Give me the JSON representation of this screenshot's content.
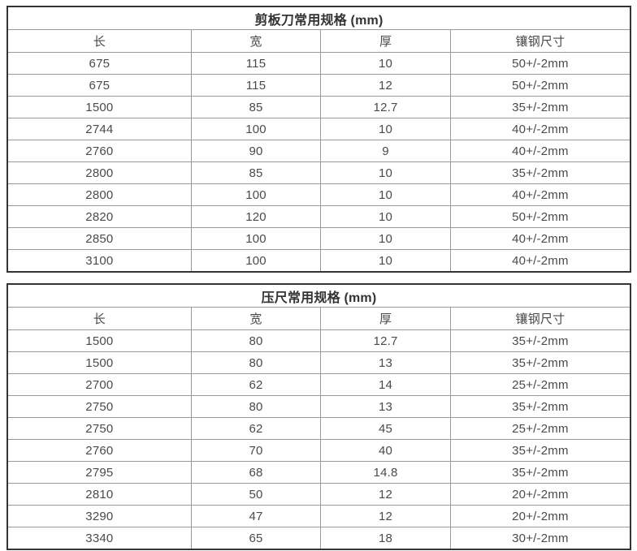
{
  "colors": {
    "outer_border": "#333333",
    "inner_border": "#999999",
    "title_text": "#333333",
    "cell_text": "#4a4a4a",
    "background": "#ffffff"
  },
  "tables": [
    {
      "title": "剪板刀常用规格 (mm)",
      "columns": [
        "长",
        "宽",
        "厚",
        "镶钢尺寸"
      ],
      "rows": [
        [
          "675",
          "115",
          "10",
          "50+/-2mm"
        ],
        [
          "675",
          "115",
          "12",
          "50+/-2mm"
        ],
        [
          "1500",
          "85",
          "12.7",
          "35+/-2mm"
        ],
        [
          "2744",
          "100",
          "10",
          "40+/-2mm"
        ],
        [
          "2760",
          "90",
          "9",
          "40+/-2mm"
        ],
        [
          "2800",
          "85",
          "10",
          "35+/-2mm"
        ],
        [
          "2800",
          "100",
          "10",
          "40+/-2mm"
        ],
        [
          "2820",
          "120",
          "10",
          "50+/-2mm"
        ],
        [
          "2850",
          "100",
          "10",
          "40+/-2mm"
        ],
        [
          "3100",
          "100",
          "10",
          "40+/-2mm"
        ]
      ]
    },
    {
      "title": "压尺常用规格 (mm)",
      "columns": [
        "长",
        "宽",
        "厚",
        "镶钢尺寸"
      ],
      "rows": [
        [
          "1500",
          "80",
          "12.7",
          "35+/-2mm"
        ],
        [
          "1500",
          "80",
          "13",
          "35+/-2mm"
        ],
        [
          "2700",
          "62",
          "14",
          "25+/-2mm"
        ],
        [
          "2750",
          "80",
          "13",
          "35+/-2mm"
        ],
        [
          "2750",
          "62",
          "45",
          "25+/-2mm"
        ],
        [
          "2760",
          "70",
          "40",
          "35+/-2mm"
        ],
        [
          "2795",
          "68",
          "14.8",
          "35+/-2mm"
        ],
        [
          "2810",
          "50",
          "12",
          "20+/-2mm"
        ],
        [
          "3290",
          "47",
          "12",
          "20+/-2mm"
        ],
        [
          "3340",
          "65",
          "18",
          "30+/-2mm"
        ]
      ]
    }
  ]
}
